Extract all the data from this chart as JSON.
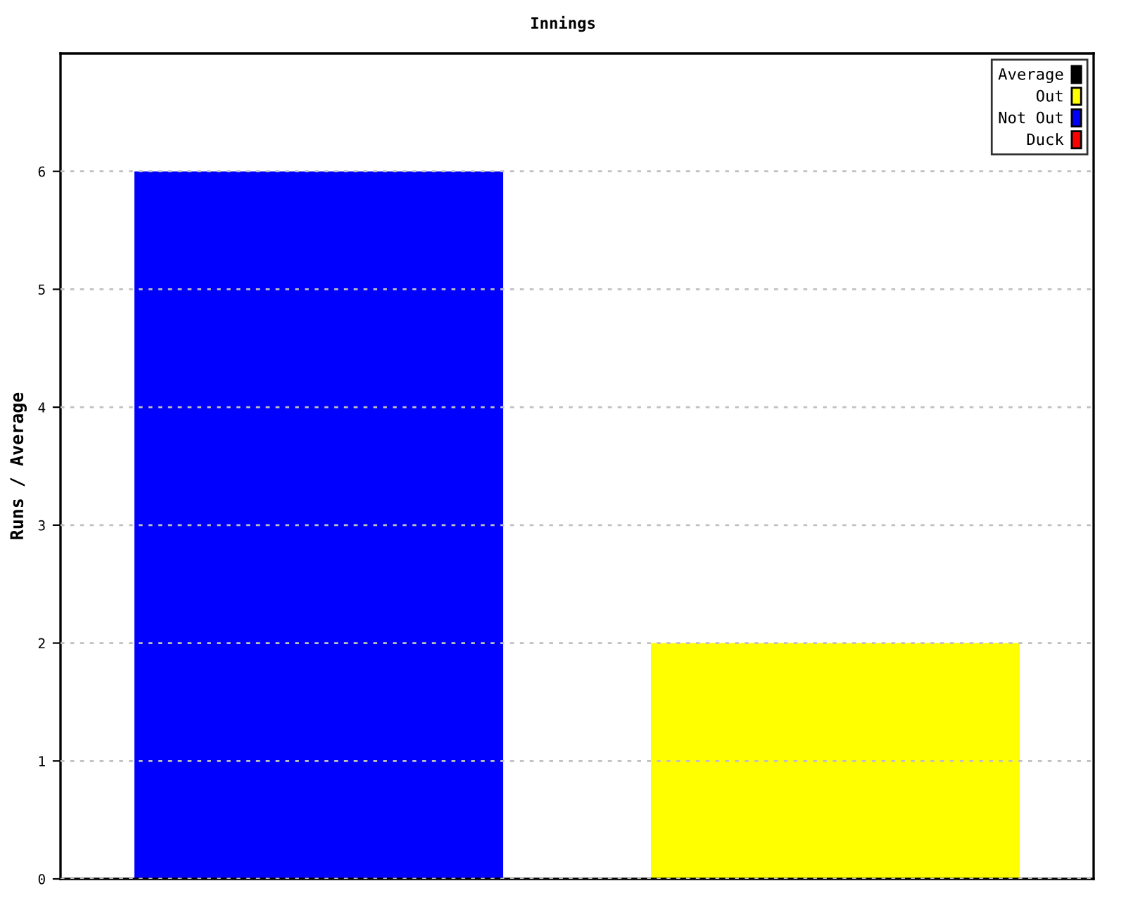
{
  "chart_data": {
    "type": "bar",
    "title": "Innings",
    "ylabel": "Runs / Average",
    "categories": [
      null,
      null
    ],
    "series": [
      {
        "name": "Average",
        "color": "#000000",
        "values": [
          null,
          null
        ]
      },
      {
        "name": "Out",
        "color": "#ffff00",
        "values": [
          null,
          2
        ]
      },
      {
        "name": "Not Out",
        "color": "#0000ff",
        "values": [
          6,
          null
        ]
      },
      {
        "name": "Duck",
        "color": "#ff0000",
        "values": [
          null,
          null
        ]
      }
    ],
    "stacked": true,
    "ylim": [
      0,
      7
    ],
    "yticks": [
      0,
      1,
      2,
      3,
      4,
      5,
      6
    ],
    "grid": "y",
    "legend": "top right"
  }
}
